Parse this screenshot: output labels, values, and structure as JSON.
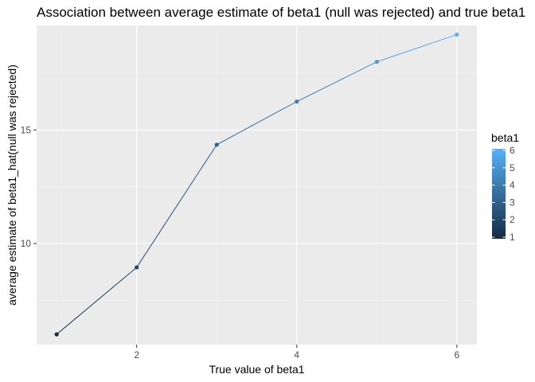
{
  "chart_data": {
    "type": "line",
    "title": "Association between average estimate of beta1 (null was rejected) and true beta1",
    "xlabel": "True value of beta1",
    "ylabel": "average estimate of beta1_hat(null was rejected)",
    "x": [
      1,
      2,
      3,
      4,
      5,
      6
    ],
    "y": [
      6.0,
      8.95,
      14.35,
      16.25,
      18.0,
      19.2
    ],
    "xlim": [
      0.75,
      6.25
    ],
    "ylim": [
      5.55,
      19.6
    ],
    "xticks": [
      2,
      4,
      6
    ],
    "yticks": [
      10,
      15
    ],
    "grid": true,
    "color_scale": {
      "name": "beta1",
      "min": 1,
      "max": 6,
      "low_color": "#132B43",
      "high_color": "#56B1F7",
      "breaks": [
        1,
        2,
        3,
        4,
        5,
        6
      ]
    },
    "legend_position": "right"
  },
  "colors": {
    "panel_background": "#EBEBEB",
    "grid_major": "#FFFFFF",
    "grid_minor": "#F4F4F4"
  }
}
